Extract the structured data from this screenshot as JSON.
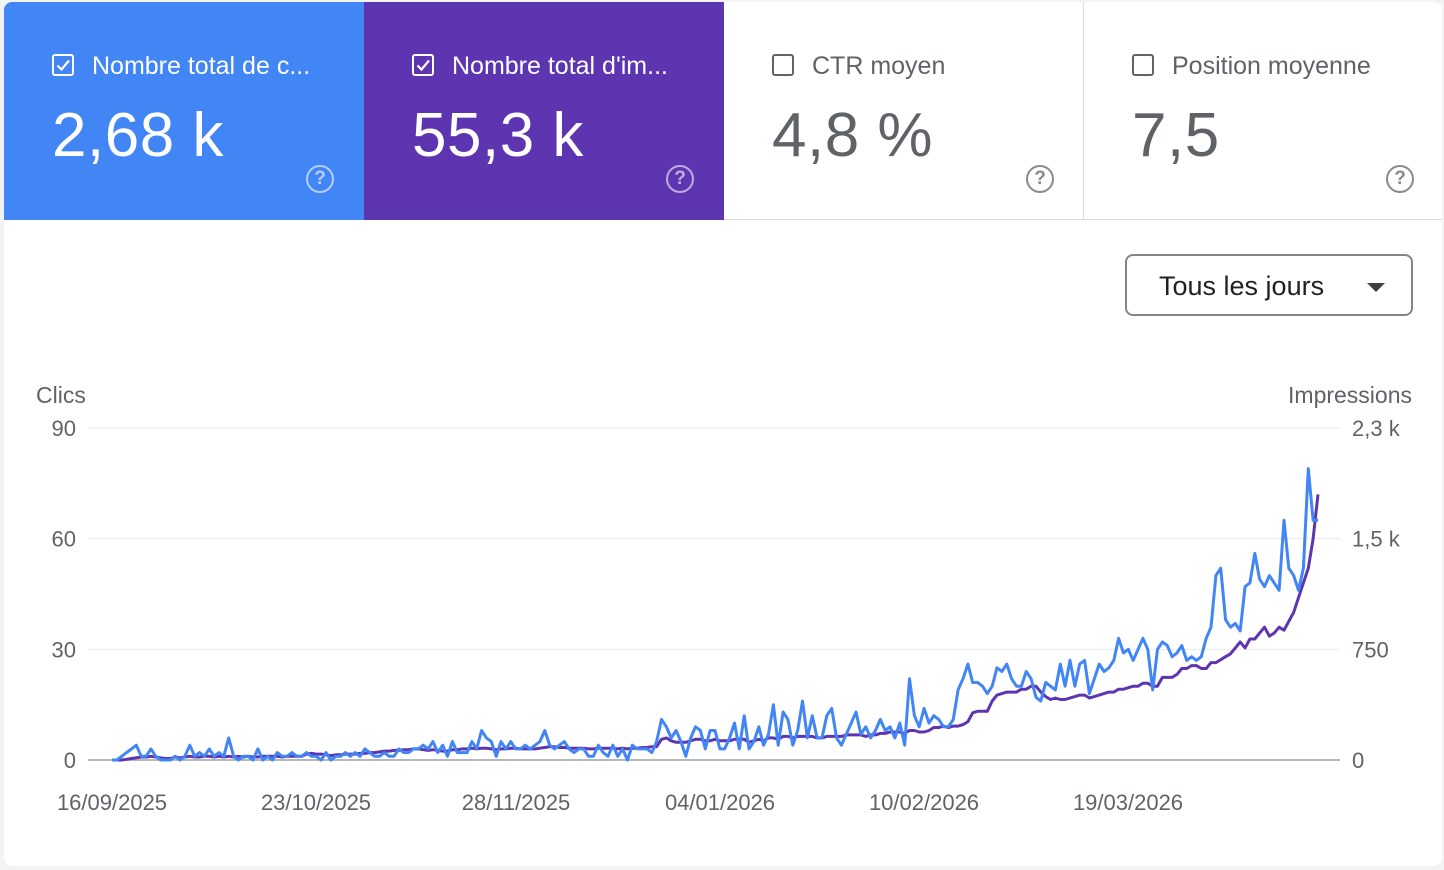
{
  "cards": [
    {
      "label": "Nombre total de c...",
      "value": "2,68 k",
      "checked": true,
      "help": "?"
    },
    {
      "label": "Nombre total d'im...",
      "value": "55,3 k",
      "checked": true,
      "help": "?"
    },
    {
      "label": "CTR moyen",
      "value": "4,8 %",
      "checked": false,
      "help": "?"
    },
    {
      "label": "Position moyenne",
      "value": "7,5",
      "checked": false,
      "help": "?"
    }
  ],
  "period_dropdown": {
    "selected": "Tous les jours"
  },
  "colors": {
    "clicks": "#4285f4",
    "impressions": "#5e35b1"
  },
  "chart_data": {
    "type": "line",
    "xlabel": "",
    "x_ticks": [
      "16/09/2025",
      "23/10/2025",
      "28/11/2025",
      "04/01/2026",
      "10/02/2026",
      "19/03/2026"
    ],
    "y_left": {
      "label": "Clics",
      "ticks": [
        "0",
        "30",
        "60",
        "90"
      ],
      "range": [
        0,
        90
      ]
    },
    "y_right": {
      "label": "Impressions",
      "ticks": [
        "0",
        "750",
        "1,5 k",
        "2,3 k"
      ],
      "range": [
        0,
        2250
      ]
    },
    "grid": true,
    "series": [
      {
        "axis": "left",
        "color": "#4285f4",
        "values": [
          0,
          0,
          1,
          2,
          3,
          4,
          1,
          1,
          3,
          1,
          0,
          0,
          0,
          1,
          0,
          1,
          4,
          1,
          2,
          1,
          3,
          1,
          2,
          1,
          6,
          1,
          0,
          1,
          1,
          0,
          3,
          0,
          1,
          0,
          2,
          1,
          1,
          2,
          1,
          1,
          2,
          1,
          1,
          0,
          2,
          0,
          1,
          1,
          2,
          1,
          2,
          1,
          3,
          2,
          1,
          1,
          2,
          1,
          1,
          3,
          2,
          2,
          3,
          3,
          4,
          3,
          5,
          2,
          4,
          1,
          5,
          2,
          2,
          2,
          5,
          3,
          8,
          6,
          5,
          1,
          5,
          3,
          5,
          3,
          3,
          4,
          3,
          4,
          5,
          8,
          4,
          3,
          4,
          5,
          3,
          2,
          3,
          3,
          1,
          1,
          4,
          2,
          1,
          4,
          1,
          3,
          0,
          4,
          3,
          3,
          3,
          2,
          5,
          11,
          9,
          6,
          8,
          5,
          1,
          6,
          9,
          8,
          3,
          8,
          8,
          3,
          3,
          6,
          10,
          3,
          12,
          3,
          5,
          9,
          4,
          7,
          15,
          4,
          13,
          11,
          4,
          8,
          16,
          6,
          12,
          6,
          6,
          12,
          14,
          6,
          4,
          7,
          10,
          13,
          7,
          9,
          6,
          8,
          11,
          8,
          9,
          6,
          10,
          4,
          22,
          12,
          9,
          14,
          10,
          12,
          11,
          9,
          9,
          11,
          19,
          22,
          26,
          21,
          21,
          20,
          18,
          20,
          25,
          24,
          26,
          22,
          20,
          20,
          24,
          22,
          17,
          16,
          21,
          20,
          19,
          26,
          20,
          27,
          20,
          26,
          27,
          18,
          22,
          26,
          24,
          25,
          27,
          33,
          29,
          30,
          27,
          30,
          33,
          30,
          19,
          30,
          32,
          31,
          28,
          29,
          31,
          27,
          28,
          27,
          28,
          33,
          36,
          50,
          52,
          38,
          36,
          37,
          35,
          47,
          48,
          56,
          49,
          47,
          50,
          48,
          46,
          65,
          52,
          50,
          46,
          52,
          79,
          65,
          65
        ]
      },
      {
        "axis": "right",
        "color": "#5e35b1",
        "values": [
          0,
          0,
          0,
          5,
          10,
          15,
          20,
          20,
          25,
          20,
          15,
          10,
          10,
          20,
          15,
          20,
          25,
          20,
          20,
          25,
          25,
          20,
          25,
          20,
          25,
          20,
          25,
          20,
          25,
          20,
          20,
          25,
          25,
          25,
          25,
          20,
          25,
          25,
          25,
          25,
          40,
          45,
          40,
          40,
          35,
          30,
          35,
          35,
          40,
          40,
          40,
          45,
          45,
          50,
          50,
          55,
          60,
          60,
          65,
          65,
          70,
          70,
          75,
          75,
          70,
          65,
          70,
          65,
          60,
          60,
          70,
          70,
          75,
          75,
          80,
          75,
          80,
          80,
          75,
          70,
          75,
          75,
          80,
          80,
          75,
          75,
          75,
          75,
          80,
          85,
          90,
          90,
          85,
          85,
          80,
          80,
          80,
          80,
          75,
          75,
          80,
          80,
          80,
          80,
          75,
          80,
          75,
          80,
          80,
          85,
          85,
          90,
          90,
          140,
          150,
          130,
          120,
          120,
          120,
          130,
          140,
          140,
          130,
          130,
          140,
          130,
          130,
          130,
          140,
          140,
          140,
          120,
          130,
          140,
          130,
          150,
          150,
          140,
          160,
          160,
          150,
          160,
          160,
          160,
          160,
          150,
          150,
          160,
          160,
          160,
          160,
          170,
          170,
          170,
          170,
          160,
          170,
          170,
          180,
          180,
          190,
          190,
          190,
          180,
          200,
          200,
          190,
          190,
          200,
          220,
          220,
          230,
          220,
          230,
          230,
          240,
          260,
          320,
          330,
          330,
          330,
          400,
          440,
          450,
          460,
          460,
          460,
          480,
          480,
          500,
          500,
          460,
          430,
          410,
          420,
          410,
          410,
          420,
          430,
          440,
          440,
          420,
          430,
          440,
          450,
          460,
          460,
          480,
          480,
          490,
          500,
          500,
          520,
          520,
          500,
          500,
          560,
          560,
          560,
          580,
          620,
          620,
          640,
          640,
          620,
          620,
          660,
          660,
          680,
          700,
          720,
          760,
          800,
          760,
          820,
          820,
          860,
          900,
          840,
          860,
          900,
          880,
          940,
          1000,
          1100,
          1200,
          1300,
          1500,
          1800
        ]
      }
    ]
  }
}
